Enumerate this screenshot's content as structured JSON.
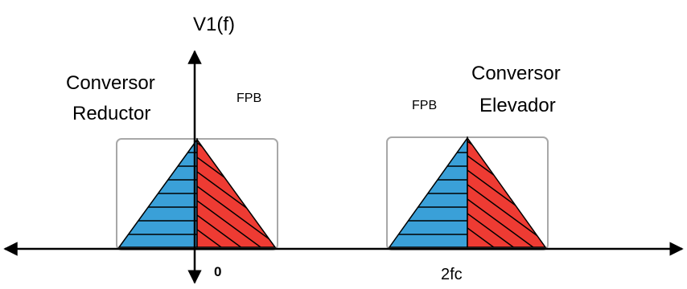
{
  "labels": {
    "y_axis": "V1(f)",
    "origin": "0",
    "carrier_freq": "2fc",
    "left_line1": "Conversor",
    "left_line2": "Reductor",
    "left_filter": "FPB",
    "right_filter": "FPB",
    "right_line1": "Conversor",
    "right_line2": "Elevador"
  },
  "colors": {
    "axis": "#000000",
    "lower_sideband": "#3aa0d8",
    "upper_sideband": "#ee3b33",
    "filter_box": "#a8a8a8",
    "hatch": "#000000"
  }
}
